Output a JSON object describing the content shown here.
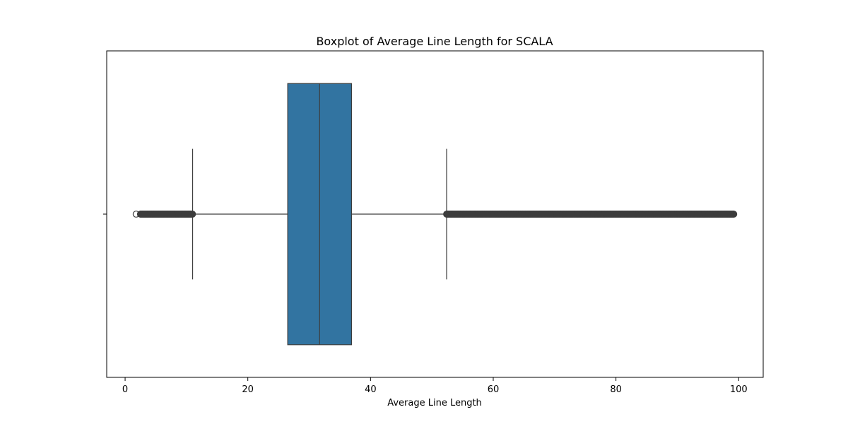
{
  "chart_data": {
    "type": "boxplot",
    "orientation": "horizontal",
    "title": "Boxplot of Average Line Length for SCALA",
    "xlabel": "Average Line Length",
    "ylabel": "",
    "xlim": [
      -3,
      104
    ],
    "xticks": [
      0,
      20,
      40,
      60,
      80,
      100
    ],
    "xtick_labels": [
      "0",
      "20",
      "40",
      "60",
      "80",
      "100"
    ],
    "grid": false,
    "box": {
      "whisker_low": 11.0,
      "q1": 26.5,
      "median": 31.7,
      "q3": 36.9,
      "whisker_high": 52.4
    },
    "outliers_low": {
      "isolated": [
        1.8
      ],
      "dense_range": [
        2.5,
        11.0
      ]
    },
    "outliers_high": {
      "dense_range": [
        52.4,
        99.2
      ]
    },
    "colors": {
      "box_fill": "#3274a1",
      "line": "#3d3d3d",
      "outlier_edge": "#3d3d3d"
    }
  }
}
